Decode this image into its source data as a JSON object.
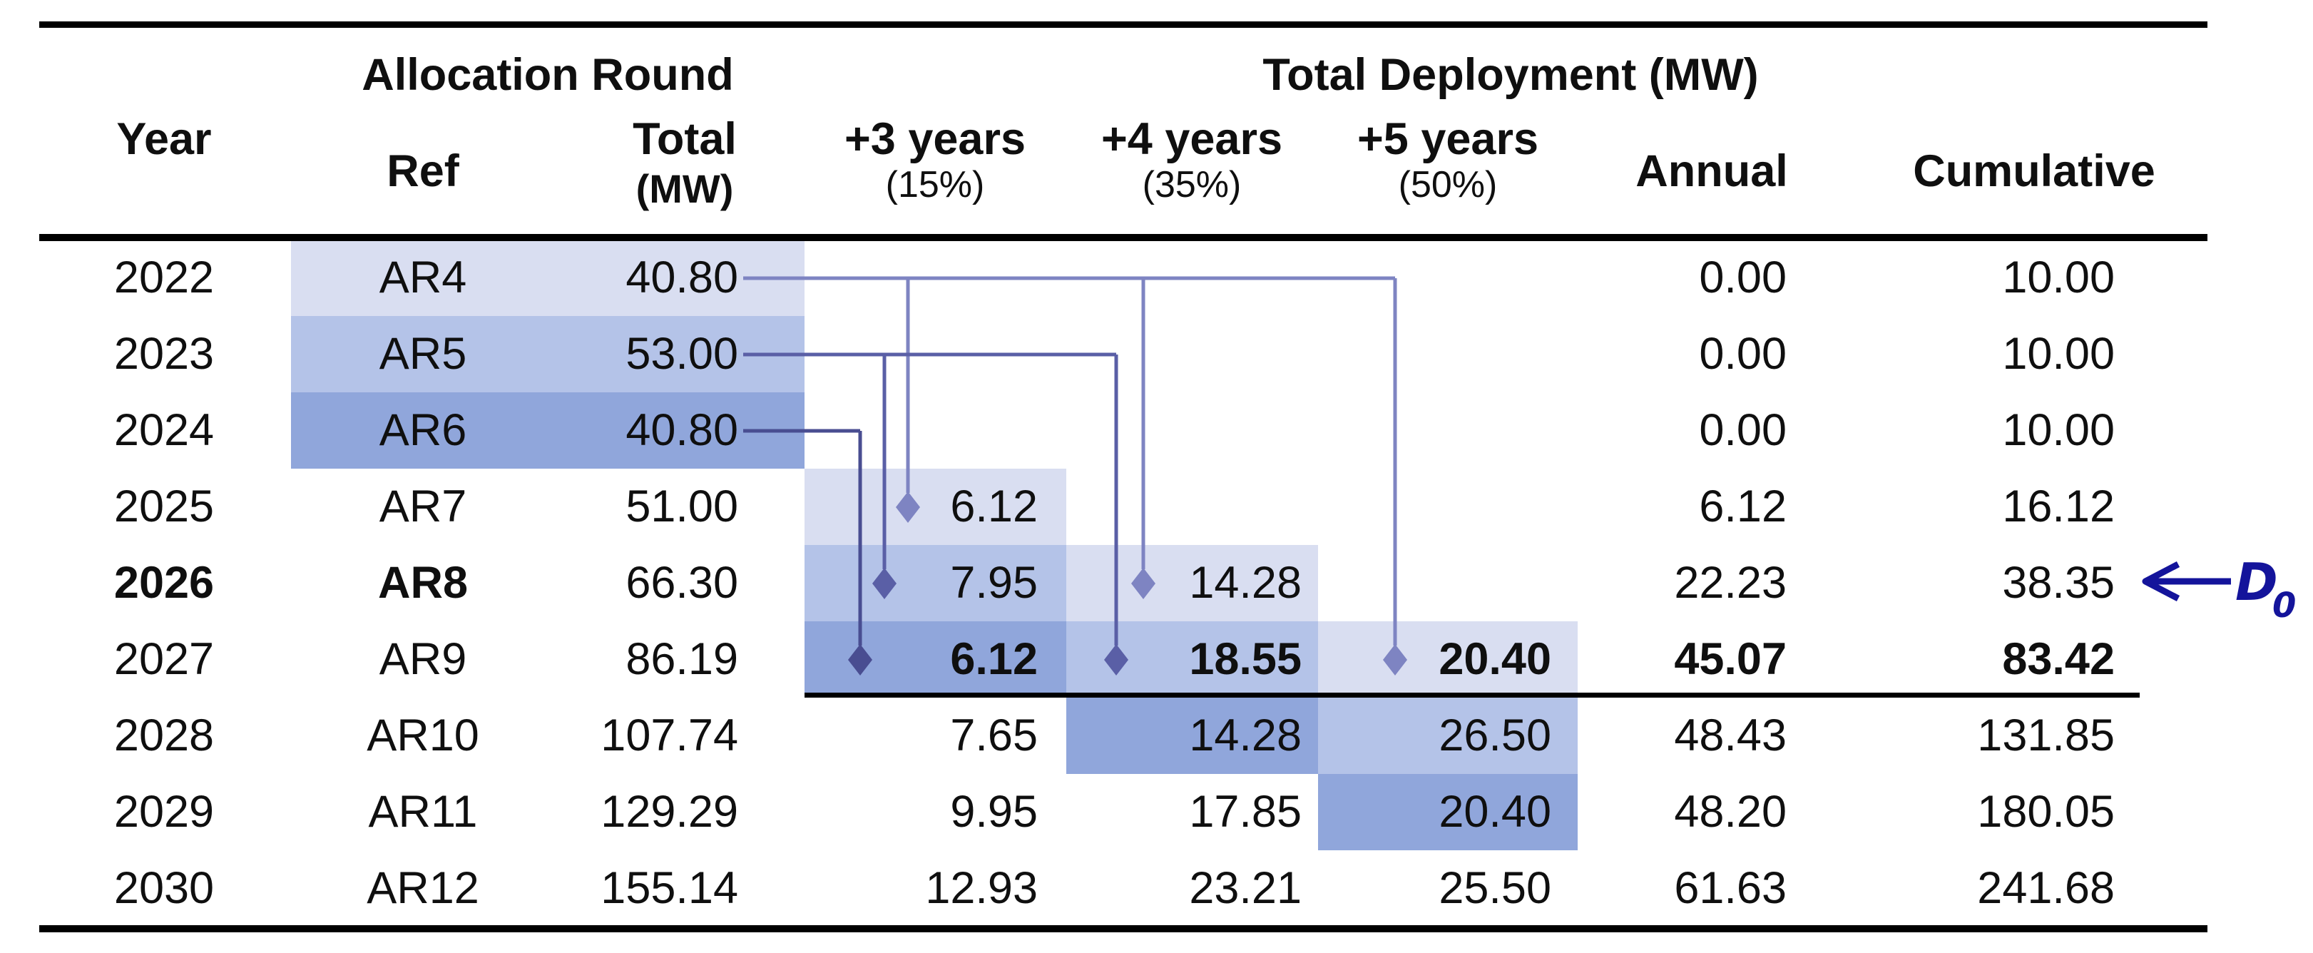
{
  "header": {
    "year": "Year",
    "allocation_round": "Allocation Round",
    "total_deployment": "Total Deployment (MW)",
    "ref": "Ref",
    "total_line1": "Total",
    "total_line2": "(MW)",
    "plus3_line1": "+3 years",
    "plus3_line2": "(15%)",
    "plus4_line1": "+4 years",
    "plus4_line2": "(35%)",
    "plus5_line1": "+5 years",
    "plus5_line2": "(50%)",
    "annual": "Annual",
    "cumulative": "Cumulative"
  },
  "rows": [
    {
      "year": "2022",
      "ref": "AR4",
      "total": "40.80",
      "plus3": "",
      "plus4": "",
      "plus5": "",
      "annual": "0.00",
      "cumulative": "10.00",
      "emphasis": ""
    },
    {
      "year": "2023",
      "ref": "AR5",
      "total": "53.00",
      "plus3": "",
      "plus4": "",
      "plus5": "",
      "annual": "0.00",
      "cumulative": "10.00",
      "emphasis": ""
    },
    {
      "year": "2024",
      "ref": "AR6",
      "total": "40.80",
      "plus3": "",
      "plus4": "",
      "plus5": "",
      "annual": "0.00",
      "cumulative": "10.00",
      "emphasis": ""
    },
    {
      "year": "2025",
      "ref": "AR7",
      "total": "51.00",
      "plus3": "6.12",
      "plus4": "",
      "plus5": "",
      "annual": "6.12",
      "cumulative": "16.12",
      "emphasis": ""
    },
    {
      "year": "2026",
      "ref": "AR8",
      "total": "66.30",
      "plus3": "7.95",
      "plus4": "14.28",
      "plus5": "",
      "annual": "22.23",
      "cumulative": "38.35",
      "emphasis": "year_ref"
    },
    {
      "year": "2027",
      "ref": "AR9",
      "total": "86.19",
      "plus3": "6.12",
      "plus4": "18.55",
      "plus5": "20.40",
      "annual": "45.07",
      "cumulative": "83.42",
      "emphasis": "deployment_values"
    },
    {
      "year": "2028",
      "ref": "AR10",
      "total": "107.74",
      "plus3": "7.65",
      "plus4": "14.28",
      "plus5": "26.50",
      "annual": "48.43",
      "cumulative": "131.85",
      "emphasis": ""
    },
    {
      "year": "2029",
      "ref": "AR11",
      "total": "129.29",
      "plus3": "9.95",
      "plus4": "17.85",
      "plus5": "20.40",
      "annual": "48.20",
      "cumulative": "180.05",
      "emphasis": ""
    },
    {
      "year": "2030",
      "ref": "AR12",
      "total": "155.14",
      "plus3": "12.93",
      "plus4": "23.21",
      "plus5": "25.50",
      "annual": "61.63",
      "cumulative": "241.68",
      "emphasis": ""
    }
  ],
  "annotation": {
    "arrow_label": "D",
    "arrow_label_subscript": "0",
    "points_at_row_year": "2026",
    "points_at_column": "Cumulative",
    "points_at_value": "38.35"
  },
  "colors": {
    "shade_light": "#d9def1",
    "shade_medium": "#b4c3e8",
    "shade_dark": "#90a6db",
    "ar4": "#7e84c2",
    "ar5": "#5a5fa6",
    "ar6": "#494d91",
    "navy": "#14149b",
    "ink": "#0f0f0f"
  },
  "chart_data": {
    "type": "table",
    "title": "",
    "columns": [
      "Year",
      "Allocation Round Ref",
      "Allocation Round Total (MW)",
      "Total Deployment +3 years (15%)",
      "Total Deployment +4 years (35%)",
      "Total Deployment +5 years (50%)",
      "Annual",
      "Cumulative"
    ],
    "rows": [
      [
        2022,
        "AR4",
        40.8,
        null,
        null,
        null,
        0.0,
        10.0
      ],
      [
        2023,
        "AR5",
        53.0,
        null,
        null,
        null,
        0.0,
        10.0
      ],
      [
        2024,
        "AR6",
        40.8,
        null,
        null,
        null,
        0.0,
        10.0
      ],
      [
        2025,
        "AR7",
        51.0,
        6.12,
        null,
        null,
        6.12,
        16.12
      ],
      [
        2026,
        "AR8",
        66.3,
        7.95,
        14.28,
        null,
        22.23,
        38.35
      ],
      [
        2027,
        "AR9",
        86.19,
        6.12,
        18.55,
        20.4,
        45.07,
        83.42
      ],
      [
        2028,
        "AR10",
        107.74,
        7.65,
        14.28,
        26.5,
        48.43,
        131.85
      ],
      [
        2029,
        "AR11",
        129.29,
        9.95,
        17.85,
        20.4,
        48.2,
        180.05
      ],
      [
        2030,
        "AR12",
        155.14,
        12.93,
        23.21,
        25.5,
        61.63,
        241.68
      ]
    ],
    "connectors": [
      {
        "from": {
          "year": 2022,
          "ref": "AR4",
          "total": 40.8
        },
        "to": [
          {
            "year": 2025,
            "column": "+3 years (15%)",
            "value": 6.12
          },
          {
            "year": 2026,
            "column": "+4 years (35%)",
            "value": 14.28
          },
          {
            "year": 2027,
            "column": "+5 years (50%)",
            "value": 20.4
          }
        ]
      },
      {
        "from": {
          "year": 2023,
          "ref": "AR5",
          "total": 53.0
        },
        "to": [
          {
            "year": 2026,
            "column": "+3 years (15%)",
            "value": 7.95
          },
          {
            "year": 2027,
            "column": "+4 years (35%)",
            "value": 18.55
          }
        ]
      },
      {
        "from": {
          "year": 2024,
          "ref": "AR6",
          "total": 40.8
        },
        "to": [
          {
            "year": 2027,
            "column": "+3 years (15%)",
            "value": 6.12
          }
        ]
      }
    ],
    "shaded_cells": [
      {
        "column": "Ref/Total (MW)",
        "years_light_to_dark": [
          2022,
          2023,
          2024
        ]
      },
      {
        "column": "+3 years (15%)",
        "years_light_to_dark": [
          2025,
          2026,
          2027
        ]
      },
      {
        "column": "+4 years (35%)",
        "years_light_to_dark": [
          2026,
          2027,
          2028
        ]
      },
      {
        "column": "+5 years (50%)",
        "years_light_to_dark": [
          2027,
          2028,
          2029
        ]
      }
    ],
    "emphasis": {
      "bold_year_ref_row": 2026,
      "bold_values_row": 2027,
      "thick_line_below_row": 2027
    },
    "annotations": [
      {
        "text": "D0",
        "style": "navy italic, left arrow",
        "target": "Cumulative value 38.35 of year 2026"
      }
    ],
    "legend_position": "none",
    "grid": "horizontal rules only (top, below header, below 2027 deployment block, bottom)"
  }
}
